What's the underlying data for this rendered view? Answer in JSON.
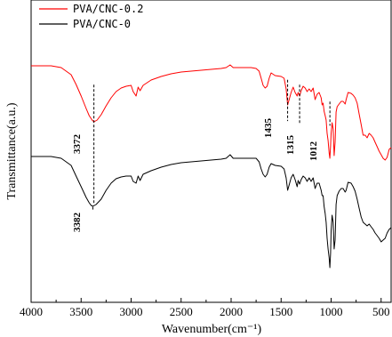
{
  "chart_data": {
    "type": "line",
    "title": "",
    "xlabel": "Wavenumber(cm⁻¹)",
    "ylabel": "Transmittance(a.u.)",
    "xlim": [
      4000,
      400
    ],
    "x_ticks": [
      "4000",
      "3500",
      "3000",
      "2500",
      "2000",
      "1500",
      "1000",
      "500"
    ],
    "x_tick_values": [
      4000,
      3500,
      3000,
      2500,
      2000,
      1500,
      1000,
      500
    ],
    "grid": false,
    "legend_position": "top-left",
    "series": [
      {
        "name": "PVA/CNC-0.2",
        "color": "#ff0000",
        "points": [
          [
            4000,
            74
          ],
          [
            3800,
            74
          ],
          [
            3700,
            76
          ],
          [
            3600,
            84
          ],
          [
            3550,
            95
          ],
          [
            3500,
            108
          ],
          [
            3450,
            122
          ],
          [
            3420,
            130
          ],
          [
            3390,
            135
          ],
          [
            3372,
            137
          ],
          [
            3340,
            135
          ],
          [
            3300,
            129
          ],
          [
            3250,
            119
          ],
          [
            3200,
            110
          ],
          [
            3150,
            103
          ],
          [
            3100,
            99
          ],
          [
            3050,
            97
          ],
          [
            3000,
            96
          ],
          [
            2980,
            103
          ],
          [
            2950,
            108
          ],
          [
            2930,
            98
          ],
          [
            2910,
            102
          ],
          [
            2880,
            96
          ],
          [
            2800,
            90
          ],
          [
            2700,
            86
          ],
          [
            2600,
            83
          ],
          [
            2500,
            81
          ],
          [
            2400,
            80
          ],
          [
            2300,
            79
          ],
          [
            2200,
            78
          ],
          [
            2100,
            77
          ],
          [
            2050,
            76
          ],
          [
            2010,
            73
          ],
          [
            1980,
            76
          ],
          [
            1900,
            76
          ],
          [
            1800,
            76
          ],
          [
            1750,
            77
          ],
          [
            1720,
            80
          ],
          [
            1700,
            88
          ],
          [
            1680,
            96
          ],
          [
            1660,
            99
          ],
          [
            1640,
            97
          ],
          [
            1620,
            88
          ],
          [
            1600,
            82
          ],
          [
            1560,
            85
          ],
          [
            1500,
            86
          ],
          [
            1470,
            88
          ],
          [
            1450,
            100
          ],
          [
            1435,
            118
          ],
          [
            1420,
            112
          ],
          [
            1400,
            104
          ],
          [
            1380,
            98
          ],
          [
            1360,
            104
          ],
          [
            1340,
            108
          ],
          [
            1330,
            104
          ],
          [
            1315,
            108
          ],
          [
            1300,
            102
          ],
          [
            1280,
            97
          ],
          [
            1260,
            99
          ],
          [
            1240,
            103
          ],
          [
            1220,
            100
          ],
          [
            1200,
            103
          ],
          [
            1180,
            99
          ],
          [
            1160,
            112
          ],
          [
            1140,
            106
          ],
          [
            1120,
            104
          ],
          [
            1100,
            110
          ],
          [
            1090,
            118
          ],
          [
            1080,
            116
          ],
          [
            1070,
            125
          ],
          [
            1060,
            130
          ],
          [
            1050,
            135
          ],
          [
            1040,
            150
          ],
          [
            1030,
            158
          ],
          [
            1020,
            172
          ],
          [
            1012,
            178
          ],
          [
            1005,
            164
          ],
          [
            1000,
            150
          ],
          [
            990,
            138
          ],
          [
            980,
            145
          ],
          [
            970,
            175
          ],
          [
            960,
            160
          ],
          [
            950,
            126
          ],
          [
            940,
            120
          ],
          [
            920,
            117
          ],
          [
            900,
            114
          ],
          [
            880,
            114
          ],
          [
            860,
            117
          ],
          [
            850,
            112
          ],
          [
            830,
            104
          ],
          [
            800,
            105
          ],
          [
            780,
            107
          ],
          [
            760,
            110
          ],
          [
            740,
            116
          ],
          [
            720,
            128
          ],
          [
            700,
            140
          ],
          [
            680,
            152
          ],
          [
            660,
            152
          ],
          [
            640,
            155
          ],
          [
            620,
            150
          ],
          [
            600,
            152
          ],
          [
            580,
            155
          ],
          [
            560,
            160
          ],
          [
            540,
            165
          ],
          [
            520,
            170
          ],
          [
            500,
            174
          ],
          [
            480,
            178
          ],
          [
            460,
            180
          ],
          [
            440,
            177
          ],
          [
            420,
            168
          ],
          [
            400,
            166
          ]
        ]
      },
      {
        "name": "PVA/CNC-0",
        "color": "#000000",
        "points": [
          [
            4000,
            176
          ],
          [
            3800,
            176
          ],
          [
            3700,
            178
          ],
          [
            3600,
            186
          ],
          [
            3550,
            198
          ],
          [
            3500,
            210
          ],
          [
            3450,
            222
          ],
          [
            3420,
            228
          ],
          [
            3400,
            231
          ],
          [
            3382,
            232
          ],
          [
            3350,
            230
          ],
          [
            3300,
            224
          ],
          [
            3250,
            214
          ],
          [
            3200,
            206
          ],
          [
            3150,
            201
          ],
          [
            3100,
            199
          ],
          [
            3050,
            198
          ],
          [
            3000,
            198
          ],
          [
            2980,
            204
          ],
          [
            2950,
            206
          ],
          [
            2930,
            198
          ],
          [
            2910,
            203
          ],
          [
            2880,
            196
          ],
          [
            2800,
            192
          ],
          [
            2700,
            188
          ],
          [
            2600,
            185
          ],
          [
            2500,
            183
          ],
          [
            2400,
            182
          ],
          [
            2300,
            181
          ],
          [
            2200,
            180
          ],
          [
            2100,
            179
          ],
          [
            2050,
            178
          ],
          [
            2010,
            174
          ],
          [
            1980,
            178
          ],
          [
            1900,
            178
          ],
          [
            1800,
            178
          ],
          [
            1750,
            178
          ],
          [
            1720,
            182
          ],
          [
            1700,
            190
          ],
          [
            1680,
            196
          ],
          [
            1660,
            199
          ],
          [
            1640,
            196
          ],
          [
            1620,
            188
          ],
          [
            1600,
            184
          ],
          [
            1560,
            186
          ],
          [
            1500,
            187
          ],
          [
            1470,
            190
          ],
          [
            1450,
            200
          ],
          [
            1435,
            214
          ],
          [
            1420,
            208
          ],
          [
            1400,
            200
          ],
          [
            1380,
            196
          ],
          [
            1360,
            202
          ],
          [
            1340,
            210
          ],
          [
            1330,
            203
          ],
          [
            1315,
            207
          ],
          [
            1300,
            202
          ],
          [
            1280,
            198
          ],
          [
            1260,
            200
          ],
          [
            1240,
            204
          ],
          [
            1220,
            200
          ],
          [
            1200,
            204
          ],
          [
            1180,
            200
          ],
          [
            1160,
            212
          ],
          [
            1140,
            206
          ],
          [
            1120,
            206
          ],
          [
            1100,
            214
          ],
          [
            1090,
            220
          ],
          [
            1080,
            220
          ],
          [
            1070,
            232
          ],
          [
            1060,
            240
          ],
          [
            1050,
            250
          ],
          [
            1040,
            268
          ],
          [
            1030,
            280
          ],
          [
            1020,
            290
          ],
          [
            1012,
            301
          ],
          [
            1005,
            285
          ],
          [
            1000,
            260
          ],
          [
            990,
            242
          ],
          [
            980,
            250
          ],
          [
            970,
            280
          ],
          [
            960,
            270
          ],
          [
            950,
            230
          ],
          [
            940,
            220
          ],
          [
            920,
            215
          ],
          [
            900,
            212
          ],
          [
            880,
            212
          ],
          [
            860,
            216
          ],
          [
            850,
            214
          ],
          [
            830,
            205
          ],
          [
            800,
            206
          ],
          [
            780,
            210
          ],
          [
            760,
            215
          ],
          [
            740,
            224
          ],
          [
            720,
            234
          ],
          [
            700,
            244
          ],
          [
            680,
            250
          ],
          [
            660,
            252
          ],
          [
            640,
            254
          ],
          [
            620,
            252
          ],
          [
            600,
            255
          ],
          [
            580,
            258
          ],
          [
            560,
            262
          ],
          [
            540,
            265
          ],
          [
            520,
            268
          ],
          [
            500,
            272
          ],
          [
            480,
            270
          ],
          [
            460,
            268
          ],
          [
            440,
            262
          ],
          [
            420,
            258
          ],
          [
            400,
            256
          ]
        ]
      }
    ],
    "annotations": [
      {
        "label": "3372",
        "x": 3372,
        "series": "PVA/CNC-0.2"
      },
      {
        "label": "1435",
        "x": 1435,
        "series": "PVA/CNC-0.2"
      },
      {
        "label": "1315",
        "x": 1315,
        "series": "PVA/CNC-0.2"
      },
      {
        "label": "1012",
        "x": 1012,
        "series": "PVA/CNC-0.2"
      },
      {
        "label": "3382",
        "x": 3382,
        "series": "PVA/CNC-0"
      }
    ]
  }
}
